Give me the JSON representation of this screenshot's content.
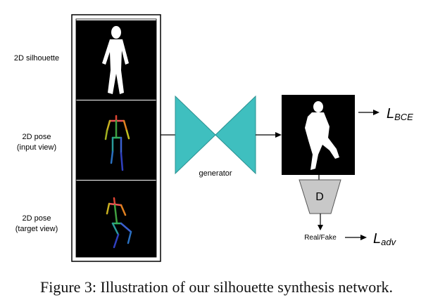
{
  "figure": {
    "inputs": [
      {
        "line1": "2D silhouette",
        "line2": ""
      },
      {
        "line1": "2D pose",
        "line2": "(input view)"
      },
      {
        "line1": "2D pose",
        "line2": "(target view)"
      }
    ],
    "generator_label": "generator",
    "discriminator_label": "D",
    "discriminator_output": "Real/Fake",
    "loss_bce": {
      "symbol": "L",
      "subscript": "BCE"
    },
    "loss_adv": {
      "symbol": "L",
      "subscript": "adv"
    },
    "colors": {
      "generator": "#3fbfbf",
      "discriminator": "#c8c8c8",
      "panel": "#000000"
    }
  },
  "caption": "Figure 3: Illustration of our silhouette synthesis network."
}
